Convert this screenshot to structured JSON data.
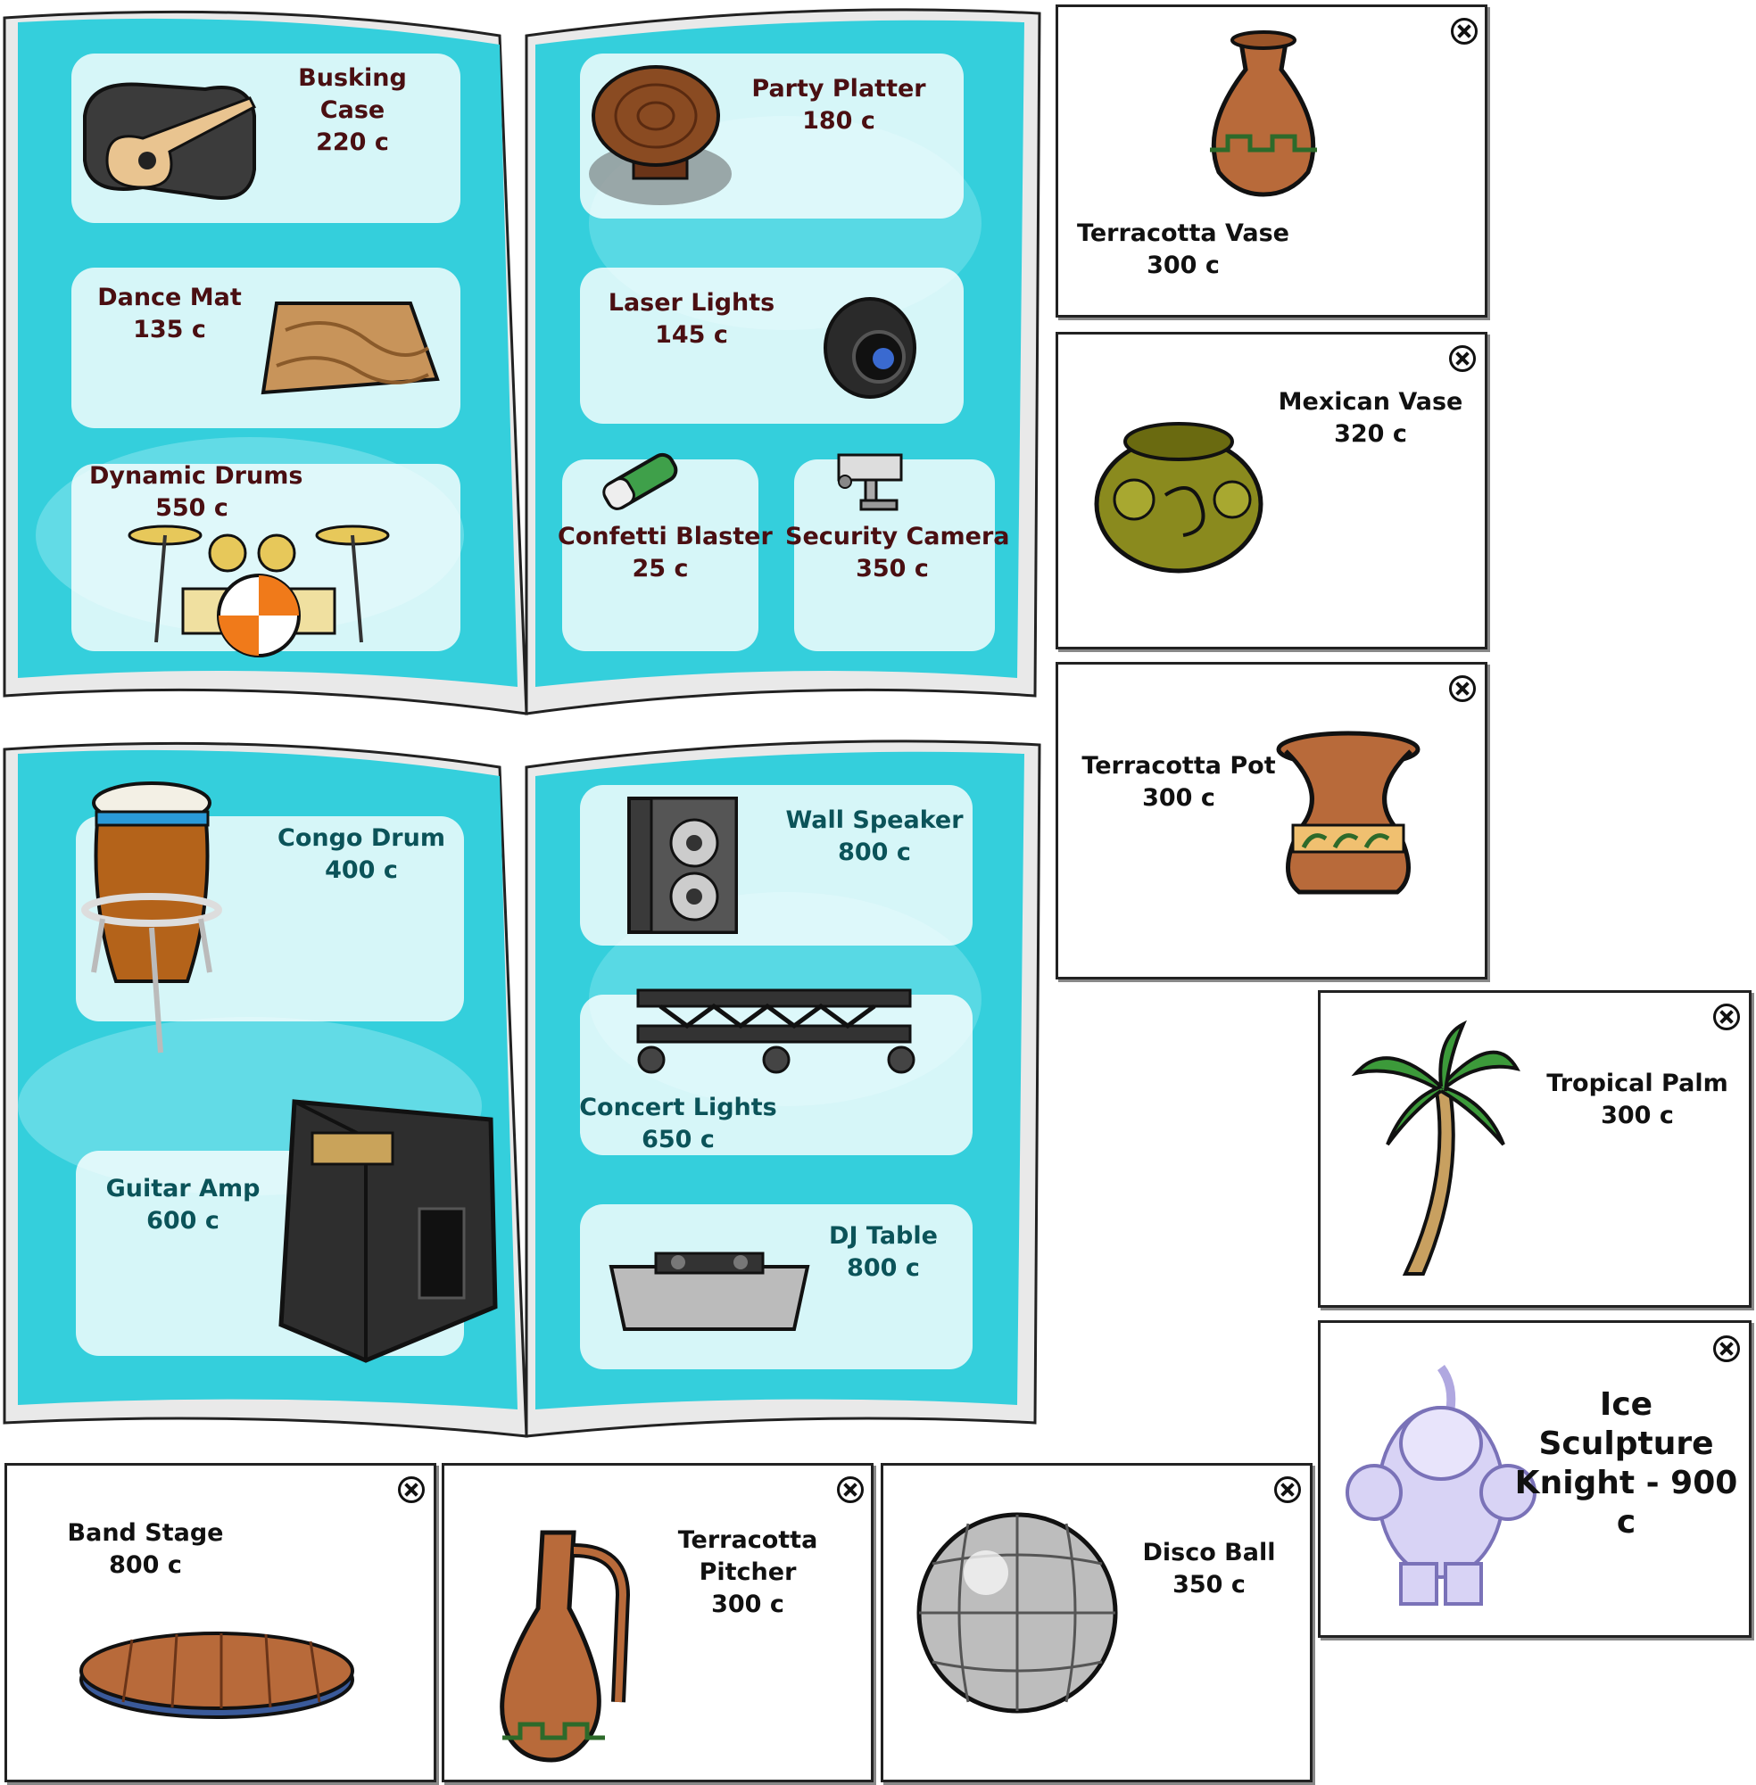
{
  "catalog_page_1": {
    "left": [
      {
        "name": "Busking\nCase",
        "price": "220  c"
      },
      {
        "name": "Dance Mat",
        "price": "135  c"
      },
      {
        "name": "Dynamic Drums",
        "price": "550  c"
      }
    ],
    "right": [
      {
        "name": "Party Platter",
        "price": "180  c"
      },
      {
        "name": "Laser Lights",
        "price": "145  c"
      },
      {
        "name": "Confetti Blaster",
        "price": "25  c"
      },
      {
        "name": "Security Camera",
        "price": "350  c"
      }
    ]
  },
  "catalog_page_2": {
    "left": [
      {
        "name": "Congo Drum",
        "price": "400  c"
      },
      {
        "name": "Guitar Amp",
        "price": "600 c"
      }
    ],
    "right": [
      {
        "name": "Wall Speaker",
        "price": "800  c"
      },
      {
        "name": "Concert Lights",
        "price": "650  c"
      },
      {
        "name": "DJ Table",
        "price": "800  c"
      }
    ]
  },
  "cards": [
    {
      "name": "Terracotta Vase",
      "price": "300  c"
    },
    {
      "name": "Mexican Vase",
      "price": "320  c"
    },
    {
      "name": "Terracotta Pot",
      "price": "300  c"
    },
    {
      "name": "Tropical Palm",
      "price": "300  c"
    },
    {
      "name": "Ice Sculpture\nKnight - 900 c",
      "price": ""
    },
    {
      "name": "Band Stage",
      "price": "800  c"
    },
    {
      "name": "Terracotta\nPitcher",
      "price": "300  c"
    },
    {
      "name": "Disco Ball",
      "price": "350  c"
    }
  ],
  "colors": {
    "page_aqua": "#2fd4e0",
    "label_dark": "#4a0f12",
    "label_teal": "#0b5359"
  },
  "icons": [
    "close-icon"
  ]
}
